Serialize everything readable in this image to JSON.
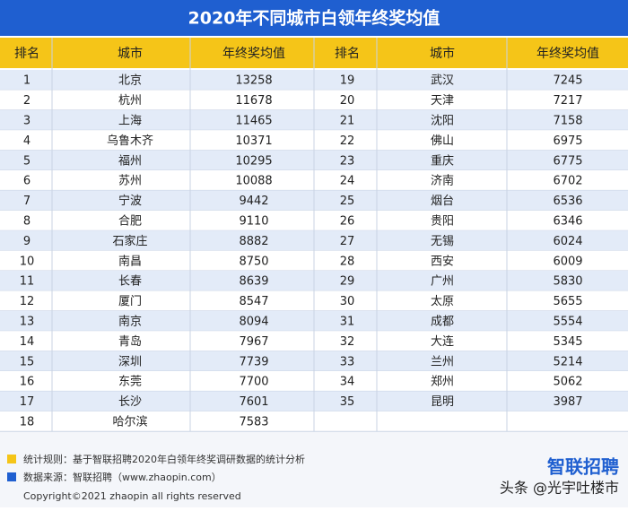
{
  "title": "2020年不同城市白领年终奖均值",
  "table": {
    "header": [
      "排名",
      "城市",
      "年终奖均值",
      "排名",
      "城市",
      "年终奖均值"
    ],
    "left_rows": [
      [
        1,
        "北京",
        13258
      ],
      [
        2,
        "杭州",
        11678
      ],
      [
        3,
        "上海",
        11465
      ],
      [
        4,
        "乌鲁木齐",
        10371
      ],
      [
        5,
        "福州",
        10295
      ],
      [
        6,
        "苏州",
        10088
      ],
      [
        7,
        "宁波",
        9442
      ],
      [
        8,
        "合肥",
        9110
      ],
      [
        9,
        "石家庄",
        8882
      ],
      [
        10,
        "南昌",
        8750
      ],
      [
        11,
        "长春",
        8639
      ],
      [
        12,
        "厦门",
        8547
      ],
      [
        13,
        "南京",
        8094
      ],
      [
        14,
        "青岛",
        7967
      ],
      [
        15,
        "深圳",
        7739
      ],
      [
        16,
        "东莞",
        7700
      ],
      [
        17,
        "长沙",
        7601
      ],
      [
        18,
        "哈尔滨",
        7583
      ]
    ],
    "right_rows": [
      [
        19,
        "武汉",
        7245
      ],
      [
        20,
        "天津",
        7217
      ],
      [
        21,
        "沈阳",
        7158
      ],
      [
        22,
        "佛山",
        6975
      ],
      [
        23,
        "重庆",
        6775
      ],
      [
        24,
        "济南",
        6702
      ],
      [
        25,
        "烟台",
        6536
      ],
      [
        26,
        "贵阳",
        6346
      ],
      [
        27,
        "无锡",
        6024
      ],
      [
        28,
        "西安",
        6009
      ],
      [
        29,
        "广州",
        5830
      ],
      [
        30,
        "太原",
        5655
      ],
      [
        31,
        "成都",
        5554
      ],
      [
        32,
        "大连",
        5345
      ],
      [
        33,
        "兰州",
        5214
      ],
      [
        34,
        "郑州",
        5062
      ],
      [
        35,
        "昆明",
        3987
      ]
    ]
  },
  "footer": {
    "notes": [
      "统计规则：基于智联招聘2020年白领年终奖调研数据的统计分析",
      "数据来源：智联招聘（www.zhaopin.com）"
    ],
    "logo": "智联招聘",
    "copyright": "Copyright©2021 zhaopin all rights reserved",
    "watermark": "头条 @光宇吐楼市"
  }
}
